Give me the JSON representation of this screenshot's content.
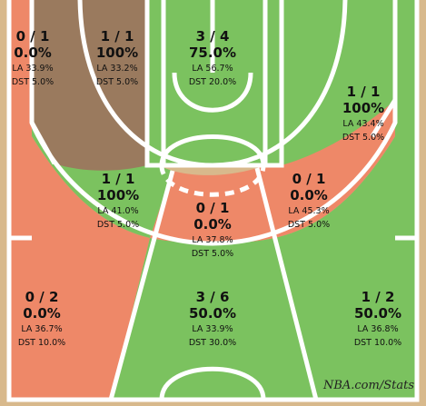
{
  "colors": {
    "above_avg": "#7bc25f",
    "below_avg": "#ee8868",
    "average": "#9a7a5e",
    "wood": "#d8b98c",
    "lines": "#ffffff"
  },
  "zones": [
    {
      "id": "left-corner-mid",
      "fg": "0 / 1",
      "pct": "0.0%",
      "la": "LA 33.9%",
      "dst": "DST 5.0%",
      "color": "below_avg"
    },
    {
      "id": "left-baseline-mid",
      "fg": "1 / 1",
      "pct": "100%",
      "la": "LA 33.2%",
      "dst": "DST 5.0%",
      "color": "average"
    },
    {
      "id": "paint",
      "fg": "3 / 4",
      "pct": "75.0%",
      "la": "LA 56.7%",
      "dst": "DST 20.0%",
      "color": "above_avg"
    },
    {
      "id": "right-baseline-mid",
      "fg": "1 / 1",
      "pct": "100%",
      "la": "LA 43.4%",
      "dst": "DST 5.0%",
      "color": "above_avg"
    },
    {
      "id": "left-wing-mid",
      "fg": "1 / 1",
      "pct": "100%",
      "la": "LA 41.0%",
      "dst": "DST 5.0%",
      "color": "above_avg"
    },
    {
      "id": "center-mid",
      "fg": "0 / 1",
      "pct": "0.0%",
      "la": "LA 37.8%",
      "dst": "DST 5.0%",
      "color": "below_avg"
    },
    {
      "id": "right-wing-mid",
      "fg": "0 / 1",
      "pct": "0.0%",
      "la": "LA 45.3%",
      "dst": "DST 5.0%",
      "color": "below_avg"
    },
    {
      "id": "left-wing-three",
      "fg": "0 / 2",
      "pct": "0.0%",
      "la": "LA 36.7%",
      "dst": "DST 10.0%",
      "color": "below_avg"
    },
    {
      "id": "center-three",
      "fg": "3 / 6",
      "pct": "50.0%",
      "la": "LA 33.9%",
      "dst": "DST 30.0%",
      "color": "above_avg"
    },
    {
      "id": "right-wing-three",
      "fg": "1 / 2",
      "pct": "50.0%",
      "la": "LA 36.8%",
      "dst": "DST 10.0%",
      "color": "above_avg"
    }
  ],
  "watermark": "NBA.com/Stats"
}
